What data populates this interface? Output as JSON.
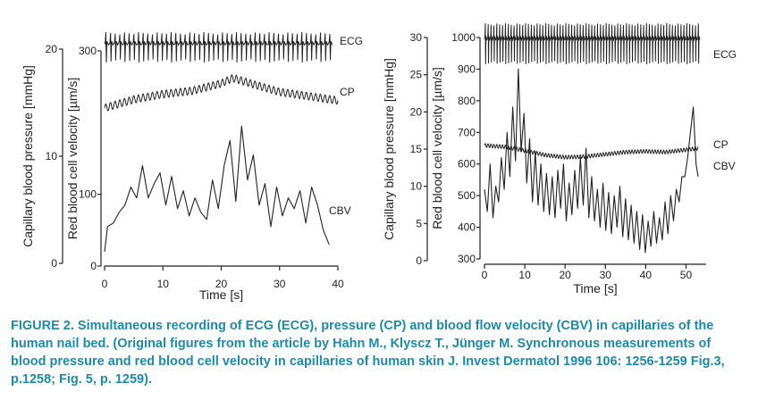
{
  "chart_data": [
    {
      "type": "line",
      "title": "",
      "xlabel": "Time [s]",
      "left_axis_label": "Capillary blood pressure [mmHg]",
      "right_axis_label": "Red blood cell velocity [µm/s]",
      "xlim": [
        0,
        40
      ],
      "xticks": [
        0,
        10,
        20,
        30,
        40
      ],
      "pressure_ylim": [
        0,
        20
      ],
      "pressure_ticks": [
        0,
        10,
        20
      ],
      "velocity_ylim": [
        0,
        300
      ],
      "velocity_ticks": [
        0,
        100,
        300
      ],
      "series": [
        {
          "name": "ECG",
          "axis": "none",
          "beats_per_second": 1.25,
          "baseline_level": 0.9,
          "spike_level": 0.98,
          "dip_level": 0.82
        },
        {
          "name": "CP",
          "axis": "pressure",
          "unit": "mmHg",
          "x": [
            0,
            5,
            10,
            15,
            20,
            22,
            25,
            30,
            35,
            40
          ],
          "y": [
            14.5,
            15.3,
            15.8,
            16.1,
            16.8,
            17.3,
            16.8,
            16.0,
            15.6,
            15.2
          ],
          "oscillation_amplitude": 0.35,
          "oscillations_per_second": 1.25
        },
        {
          "name": "CBV",
          "axis": "velocity",
          "unit": "µm/s",
          "x": [
            0,
            0.5,
            1.5,
            2.5,
            3.5,
            4.5,
            5.5,
            6.5,
            7.5,
            8.5,
            9.5,
            10.5,
            11.5,
            12.5,
            13.5,
            14.5,
            15.5,
            16.5,
            17.5,
            18.5,
            19.5,
            20.5,
            21.5,
            22.5,
            23.5,
            24.5,
            25.5,
            26.5,
            27.5,
            28.5,
            29.5,
            30.5,
            31.5,
            32.5,
            33.5,
            34.5,
            35.5,
            36.5,
            37.5,
            38.5
          ],
          "y": [
            20,
            55,
            60,
            75,
            85,
            110,
            95,
            140,
            95,
            115,
            130,
            85,
            125,
            80,
            105,
            70,
            95,
            75,
            65,
            120,
            80,
            140,
            175,
            90,
            195,
            120,
            155,
            85,
            115,
            55,
            110,
            70,
            95,
            80,
            105,
            60,
            110,
            85,
            50,
            30
          ]
        }
      ],
      "trace_labels": [
        "ECG",
        "CP",
        "CBV"
      ]
    },
    {
      "type": "line",
      "title": "",
      "xlabel": "Time [s]",
      "left_axis_label": "Capillary blood pressure [mmHg]",
      "right_axis_label": "Red blood cell velocity [µm/s]",
      "xlim": [
        0,
        55
      ],
      "xticks": [
        0,
        10,
        20,
        30,
        40,
        50
      ],
      "pressure_ylim": [
        0,
        30
      ],
      "pressure_ticks": [
        0,
        5,
        10,
        15,
        20,
        25,
        30
      ],
      "velocity_ylim": [
        300,
        1000
      ],
      "velocity_ticks": [
        300,
        400,
        500,
        600,
        700,
        800,
        900,
        1000
      ],
      "series": [
        {
          "name": "ECG",
          "axis": "none",
          "beats_per_second": 1.4,
          "baseline_level": 0.92,
          "spike_level": 0.985,
          "dip_level": 0.88
        },
        {
          "name": "CP",
          "axis": "pressure",
          "unit": "mmHg",
          "x": [
            0,
            5,
            10,
            15,
            20,
            25,
            30,
            35,
            40,
            45,
            50,
            53
          ],
          "y": [
            15.5,
            15.3,
            14.8,
            14.2,
            13.9,
            14.0,
            14.3,
            14.6,
            14.7,
            14.6,
            14.9,
            15.1
          ],
          "oscillation_amplitude": 0.25,
          "oscillations_per_second": 1.4
        },
        {
          "name": "CBV",
          "axis": "velocity",
          "unit": "µm/s",
          "x": [
            0,
            0.7,
            1.4,
            2.1,
            2.8,
            3.5,
            4.2,
            4.9,
            5.6,
            6.3,
            7.0,
            7.7,
            8.4,
            9.1,
            9.8,
            10.5,
            11.2,
            11.9,
            12.6,
            13.3,
            14.0,
            14.7,
            15.4,
            16.1,
            16.8,
            17.5,
            18.2,
            18.9,
            19.6,
            20.3,
            21.0,
            21.7,
            22.4,
            23.1,
            23.8,
            24.5,
            25.2,
            25.9,
            26.6,
            27.3,
            28.0,
            28.7,
            29.4,
            30.1,
            30.8,
            31.5,
            32.2,
            32.9,
            33.6,
            34.3,
            35.0,
            35.7,
            36.4,
            37.1,
            37.8,
            38.5,
            39.2,
            39.9,
            40.6,
            41.3,
            42.0,
            42.7,
            43.4,
            44.1,
            44.8,
            45.5,
            46.2,
            46.9,
            47.6,
            48.3,
            49.0,
            49.7,
            50.4,
            51.1,
            51.8,
            52.5,
            53.0
          ],
          "y": [
            520,
            450,
            600,
            430,
            530,
            480,
            620,
            520,
            700,
            560,
            780,
            610,
            900,
            640,
            760,
            540,
            680,
            480,
            640,
            470,
            600,
            450,
            570,
            440,
            560,
            430,
            580,
            460,
            600,
            420,
            540,
            440,
            580,
            460,
            620,
            470,
            650,
            430,
            560,
            420,
            520,
            400,
            540,
            390,
            510,
            380,
            500,
            400,
            530,
            370,
            490,
            360,
            470,
            350,
            450,
            330,
            440,
            320,
            420,
            340,
            450,
            350,
            430,
            360,
            480,
            380,
            500,
            420,
            520,
            480,
            560,
            560,
            620,
            700,
            780,
            600,
            560
          ]
        }
      ],
      "trace_labels": [
        "ECG",
        "CP",
        "CBV"
      ]
    }
  ],
  "caption": {
    "text": "FIGURE 2. Simultaneous recording of ECG (ECG), pressure (CP) and blood flow velocity (CBV) in capillaries of the human nail bed. (Original figures from the article by Hahn M., Klyscz T., Jünger M. Synchronous measurements of blood pressure and red blood cell velocity in capillaries of human skin J. Invest Dermatol 1996 106: 1256-1259 Fig.3, p.1258; Fig. 5, p. 1259)."
  },
  "colors": {
    "ink": "#222222",
    "caption": "#1d8aa8"
  }
}
